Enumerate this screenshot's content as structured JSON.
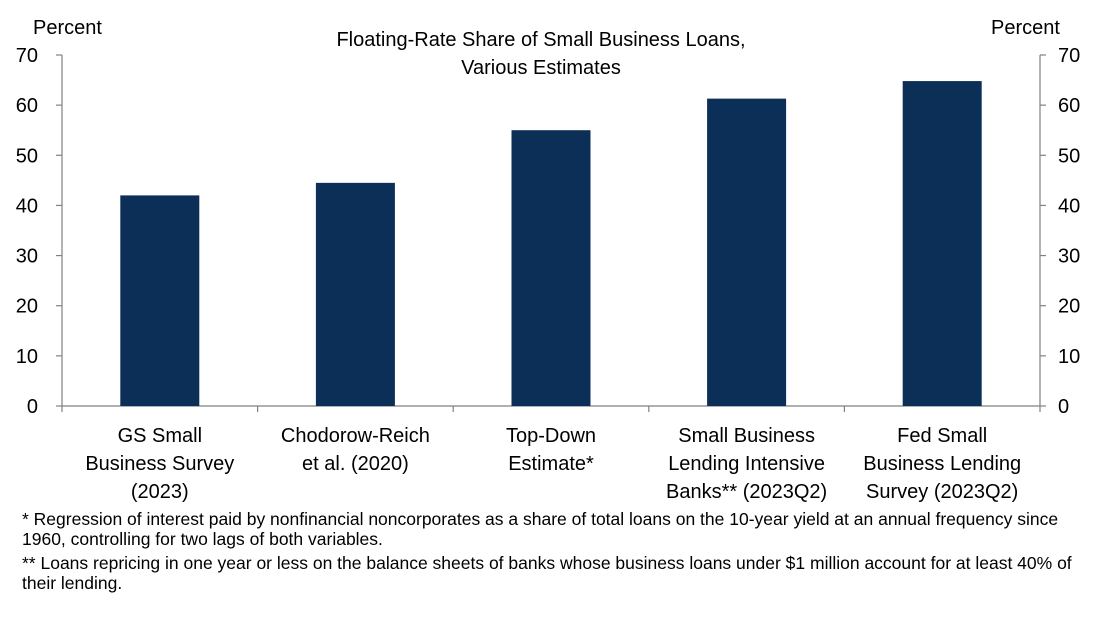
{
  "chart_data": {
    "type": "bar",
    "title_lines": [
      "Floating-Rate  Share of Small Business Loans,",
      "Various Estimates"
    ],
    "ylabel_left": "Percent",
    "ylabel_right": "Percent",
    "ylim": [
      0,
      70
    ],
    "yticks": [
      0,
      10,
      20,
      30,
      40,
      50,
      60,
      70
    ],
    "categories": [
      [
        "GS Small",
        "Business Survey",
        "(2023)"
      ],
      [
        "Chodorow-Reich",
        "et al. (2020)"
      ],
      [
        "Top-Down",
        "Estimate*"
      ],
      [
        "Small Business",
        "Lending Intensive",
        "Banks** (2023Q2)"
      ],
      [
        "Fed Small",
        "Business Lending",
        "Survey (2023Q2)"
      ]
    ],
    "values": [
      42,
      44.5,
      55,
      61.3,
      64.8
    ],
    "bar_color": "#0c2f57",
    "grid": false,
    "legend": "none"
  },
  "footnotes": {
    "note1": "* Regression of interest paid by nonfinancial noncorporates as a share of total loans on the 10-year yield at an annual frequency since 1960, controlling for two lags of both variables.",
    "note2": "** Loans repricing in one year or less on the balance sheets of banks whose business loans under $1 million account for at least 40% of their lending."
  }
}
